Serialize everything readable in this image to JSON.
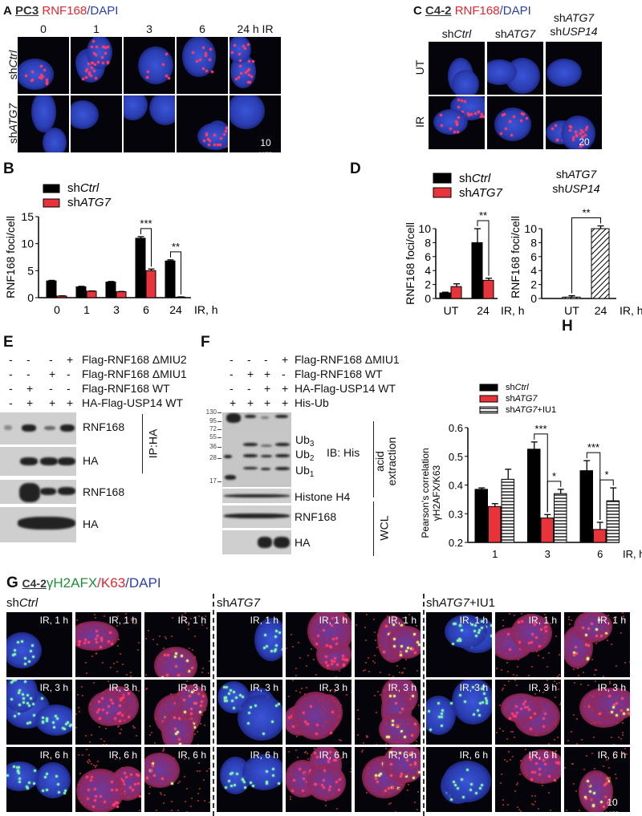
{
  "panelA": {
    "label": "A",
    "cell_line": "PC3",
    "stain1": "RNF168",
    "stain2": "/DAPI",
    "columns": [
      "0",
      "1",
      "3",
      "6",
      "24 h IR"
    ],
    "rows": [
      {
        "prefix": "sh",
        "gene": "Ctrl"
      },
      {
        "prefix": "sh",
        "gene": "ATG7"
      }
    ],
    "scale_bar": "10 μm"
  },
  "panelC": {
    "label": "C",
    "cell_line": "C4-2",
    "stain1": "RNF168",
    "stain2": "/DAPI",
    "columns": [
      {
        "line1_prefix": "sh",
        "line1_gene": "Ctrl"
      },
      {
        "line1_prefix": "sh",
        "line1_gene": "ATG7"
      },
      {
        "line1_prefix": "sh",
        "line1_gene": "ATG7",
        "line2_prefix": "sh",
        "line2_gene": "USP14"
      }
    ],
    "rows": [
      "UT",
      "IR"
    ],
    "scale_bar": "20 μm"
  },
  "panelB": {
    "label": "B"
  },
  "panelD": {
    "label": "D"
  },
  "panelH": {
    "label": "H"
  },
  "panelE": {
    "label": "E",
    "conditions": [
      {
        "label": "Flag-RNF168 ΔMIU2",
        "signs": [
          "-",
          "-",
          "-",
          "+"
        ]
      },
      {
        "label": "Flag-RNF168 ΔMIU1",
        "signs": [
          "-",
          "-",
          "+",
          "-"
        ]
      },
      {
        "label": "Flag-RNF168 WT",
        "signs": [
          "-",
          "+",
          "-",
          "-"
        ]
      },
      {
        "label": "HA-Flag-USP14 WT",
        "signs": [
          "-",
          "+",
          "+",
          "+"
        ]
      }
    ],
    "blots": [
      "RNF168",
      "HA",
      "RNF168",
      "HA"
    ],
    "group_label": "IP:HA"
  },
  "panelF": {
    "label": "F",
    "conditions": [
      {
        "label": "Flag-RNF168 ΔMIU1",
        "signs": [
          "-",
          "-",
          "-",
          "+"
        ]
      },
      {
        "label": "Flag-RNF168 WT",
        "signs": [
          "-",
          "+",
          "+",
          "-"
        ]
      },
      {
        "label": "HA-Flag-USP14 WT",
        "signs": [
          "-",
          "-",
          "+",
          "+"
        ]
      },
      {
        "label": "His-Ub",
        "signs": [
          "+",
          "+",
          "+",
          "+"
        ]
      }
    ],
    "mw_markers": [
      "130",
      "95",
      "72",
      "55",
      "36",
      "28",
      "17"
    ],
    "ub_labels": [
      {
        "base": "Ub",
        "sub": "3"
      },
      {
        "base": "Ub",
        "sub": "2"
      },
      {
        "base": "Ub",
        "sub": "1"
      }
    ],
    "ib_label": "IB: His",
    "blots": [
      "Histone  H4",
      "RNF168",
      "HA"
    ],
    "group1_line1": "acid",
    "group1_line2": "extraction",
    "group2": "WCL"
  },
  "panelG": {
    "label": "G",
    "cell_line": "C4-2",
    "stain_green": "γH2AFX",
    "stain_red": "/K63",
    "stain_blue": "/DAPI",
    "groups": [
      {
        "prefix": "sh",
        "gene": "Ctrl",
        "suffix": ""
      },
      {
        "prefix": "sh",
        "gene": "ATG7",
        "suffix": ""
      },
      {
        "prefix": "sh",
        "gene": "ATG7",
        "suffix": "+IU1"
      }
    ],
    "timepoints": [
      "IR, 1 h",
      "IR, 3 h",
      "IR, 6 h"
    ],
    "scale_bar": "10 μm"
  },
  "colors": {
    "shCtrl": "#000000",
    "shATG7": "#e8333a",
    "hatched": "#ffffff"
  },
  "chart_data": [
    {
      "id": "B",
      "type": "bar",
      "categories": [
        "0",
        "1",
        "3",
        "6",
        "24"
      ],
      "xlabel": "IR, h",
      "ylabel": "RNF168 foci/cell",
      "ylim": [
        0,
        15
      ],
      "yticks": [
        "0",
        "5",
        "10",
        "15"
      ],
      "legend": "top-left",
      "series": [
        {
          "name": "shCtrl",
          "name_prefix": "sh",
          "name_gene": "Ctrl",
          "values": [
            3.1,
            2.0,
            2.9,
            11.0,
            6.8
          ],
          "errors": [
            0.1,
            0.1,
            0.1,
            0.3,
            0.2
          ],
          "fill": "black"
        },
        {
          "name": "shATG7",
          "name_prefix": "sh",
          "name_gene": "ATG7",
          "values": [
            0.3,
            1.2,
            1.1,
            5.0,
            0.1
          ],
          "errors": [
            0.05,
            0.05,
            0.05,
            0.3,
            0.05
          ],
          "fill": "red"
        }
      ],
      "significance": [
        {
          "category": 3,
          "a": 0,
          "b": 1,
          "label": "***"
        },
        {
          "category": 4,
          "a": 0,
          "b": 1,
          "label": "**"
        }
      ]
    },
    {
      "id": "D1",
      "type": "bar",
      "categories": [
        "UT",
        "24"
      ],
      "xlabel": "IR, h",
      "ylabel": "RNF168 foci/cell",
      "ylim": [
        0,
        10
      ],
      "yticks": [
        "0",
        "2",
        "4",
        "6",
        "8",
        "10"
      ],
      "legend": "top",
      "series": [
        {
          "name": "shCtrl",
          "name_prefix": "sh",
          "name_gene": "Ctrl",
          "values": [
            0.8,
            8.0
          ],
          "errors": [
            0.1,
            2.0
          ],
          "fill": "black"
        },
        {
          "name": "shATG7",
          "name_prefix": "sh",
          "name_gene": "ATG7",
          "values": [
            1.7,
            2.6
          ],
          "errors": [
            0.4,
            0.3
          ],
          "fill": "red"
        }
      ],
      "significance": [
        {
          "category": 1,
          "a": 0,
          "b": 1,
          "label": "**"
        }
      ]
    },
    {
      "id": "D2",
      "type": "bar",
      "title_line1_prefix": "sh",
      "title_line1_gene": "ATG7",
      "title_line2_prefix": "sh",
      "title_line2_gene": "USP14",
      "categories": [
        "UT",
        "24"
      ],
      "xlabel": "IR, h",
      "ylabel": "RNF168 foci/cell",
      "ylim": [
        0,
        10
      ],
      "yticks": [
        "0",
        "2",
        "4",
        "6",
        "8",
        "10"
      ],
      "series": [
        {
          "values": [
            0.2,
            10.0
          ],
          "errors": [
            0.2,
            0.4
          ],
          "fill": "hatched-diagonal"
        }
      ],
      "significance": [
        {
          "between_categories": [
            0,
            1
          ],
          "label": "**"
        }
      ]
    },
    {
      "id": "H",
      "type": "bar",
      "categories": [
        "1",
        "3",
        "6"
      ],
      "xlabel": "IR, h",
      "ylabel_line1": "Pearson's correlation",
      "ylabel_line2": "γH2AFX/K63",
      "ylim": [
        0.2,
        0.6
      ],
      "yticks": [
        "0.2",
        "0.3",
        "0.4",
        "0.5",
        "0.6"
      ],
      "legend": "top-left",
      "series": [
        {
          "name": "shCtrl",
          "name_prefix": "sh",
          "name_gene": "Ctrl",
          "name_suffix": "",
          "values": [
            0.385,
            0.525,
            0.45
          ],
          "errors": [
            0.005,
            0.025,
            0.035
          ],
          "fill": "black"
        },
        {
          "name": "shATG7",
          "name_prefix": "sh",
          "name_gene": "ATG7",
          "name_suffix": "",
          "values": [
            0.325,
            0.285,
            0.245
          ],
          "errors": [
            0.01,
            0.012,
            0.025
          ],
          "fill": "red"
        },
        {
          "name": "shATG7+IU1",
          "name_prefix": "sh",
          "name_gene": "ATG7",
          "name_suffix": "+IU1",
          "values": [
            0.42,
            0.37,
            0.345
          ],
          "errors": [
            0.035,
            0.015,
            0.045
          ],
          "fill": "hatched-horizontal"
        }
      ],
      "significance": [
        {
          "category": 1,
          "a": 0,
          "b": 1,
          "label": "***"
        },
        {
          "category": 1,
          "a": 1,
          "b": 2,
          "label": "*"
        },
        {
          "category": 2,
          "a": 0,
          "b": 1,
          "label": "***"
        },
        {
          "category": 2,
          "a": 1,
          "b": 2,
          "label": "*"
        }
      ]
    }
  ]
}
